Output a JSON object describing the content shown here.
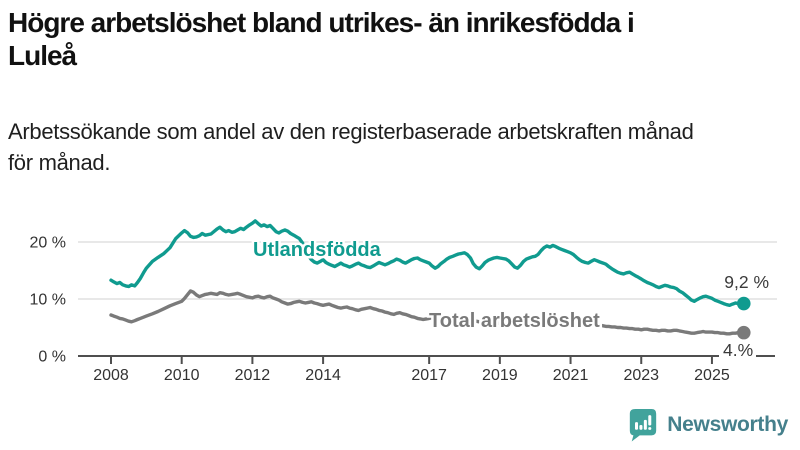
{
  "header": {
    "title_lines": [
      "Högre arbetslöshet bland utrikes- än inrikesfödda i",
      "Luleå"
    ],
    "subtitle_lines": [
      "Arbetssökande som andel av den registerbaserade arbetskraften månad",
      "för månad."
    ]
  },
  "chart_data": {
    "type": "line",
    "unit": "%",
    "grid": "horizontal-light",
    "grid_color": "#dbdbdb",
    "axis_color": "#4f4f4f",
    "x_ticks": [
      "2008",
      "2010",
      "2012",
      "2014",
      "2017",
      "2019",
      "2021",
      "2023",
      "2025"
    ],
    "x_tick_years": [
      2008,
      2010,
      2012,
      2014,
      2017,
      2019,
      2021,
      2023,
      2025
    ],
    "y_ticks": [
      "0 %",
      "10 %",
      "20 %"
    ],
    "y_tick_values": [
      0,
      10,
      20
    ],
    "xlim": [
      2007.6,
      2026.4
    ],
    "ylim": [
      0,
      26
    ],
    "series": [
      {
        "name": "Utlandsfödda",
        "color": "#109b8f",
        "end_label": "9,2 %",
        "x": [
          2008.0,
          2008.08,
          2008.17,
          2008.25,
          2008.33,
          2008.42,
          2008.5,
          2008.58,
          2008.67,
          2008.75,
          2008.83,
          2008.92,
          2009.0,
          2009.17,
          2009.33,
          2009.5,
          2009.67,
          2009.83,
          2010.0,
          2010.08,
          2010.17,
          2010.25,
          2010.33,
          2010.42,
          2010.5,
          2010.58,
          2010.67,
          2010.83,
          2011.0,
          2011.08,
          2011.17,
          2011.25,
          2011.33,
          2011.42,
          2011.5,
          2011.58,
          2011.67,
          2011.75,
          2011.83,
          2011.92,
          2012.0,
          2012.08,
          2012.17,
          2012.25,
          2012.33,
          2012.42,
          2012.5,
          2012.58,
          2012.67,
          2012.75,
          2012.83,
          2012.92,
          2013.0,
          2013.08,
          2013.17,
          2013.25,
          2013.33,
          2013.42,
          2013.5,
          2013.58,
          2013.67,
          2013.75,
          2013.83,
          2013.92,
          2014.0,
          2014.08,
          2014.17,
          2014.25,
          2014.33,
          2014.42,
          2014.5,
          2014.58,
          2014.67,
          2014.75,
          2014.83,
          2014.92,
          2015.0,
          2015.08,
          2015.17,
          2015.25,
          2015.33,
          2015.42,
          2015.5,
          2015.58,
          2015.67,
          2015.75,
          2015.83,
          2015.92,
          2016.0,
          2016.08,
          2016.17,
          2016.25,
          2016.33,
          2016.42,
          2016.5,
          2016.58,
          2016.67,
          2016.75,
          2016.83,
          2016.92,
          2017.0,
          2017.08,
          2017.17,
          2017.25,
          2017.33,
          2017.42,
          2017.5,
          2017.58,
          2017.67,
          2017.75,
          2017.83,
          2017.92,
          2018.0,
          2018.08,
          2018.17,
          2018.25,
          2018.33,
          2018.42,
          2018.5,
          2018.58,
          2018.67,
          2018.75,
          2018.83,
          2018.92,
          2019.0,
          2019.08,
          2019.17,
          2019.25,
          2019.33,
          2019.42,
          2019.5,
          2019.58,
          2019.67,
          2019.75,
          2019.83,
          2019.92,
          2020.0,
          2020.08,
          2020.17,
          2020.25,
          2020.33,
          2020.42,
          2020.5,
          2020.58,
          2020.67,
          2020.75,
          2020.83,
          2020.92,
          2021.0,
          2021.08,
          2021.17,
          2021.25,
          2021.33,
          2021.42,
          2021.5,
          2021.58,
          2021.67,
          2021.75,
          2021.83,
          2021.92,
          2022.0,
          2022.08,
          2022.17,
          2022.25,
          2022.33,
          2022.42,
          2022.5,
          2022.58,
          2022.67,
          2022.75,
          2022.83,
          2022.92,
          2023.0,
          2023.08,
          2023.17,
          2023.25,
          2023.33,
          2023.42,
          2023.5,
          2023.58,
          2023.67,
          2023.75,
          2023.83,
          2023.92,
          2024.0,
          2024.08,
          2024.17,
          2024.25,
          2024.33,
          2024.42,
          2024.5,
          2024.58,
          2024.67,
          2024.75,
          2024.83,
          2024.92,
          2025.0,
          2025.08,
          2025.17,
          2025.25,
          2025.33,
          2025.42,
          2025.5,
          2025.58,
          2025.67,
          2025.75,
          2025.9
        ],
        "values": [
          13.3,
          13.0,
          12.7,
          12.9,
          12.5,
          12.3,
          12.2,
          12.5,
          12.3,
          12.9,
          13.6,
          14.6,
          15.4,
          16.6,
          17.3,
          18.0,
          19.0,
          20.6,
          21.6,
          22.0,
          21.6,
          21.0,
          20.8,
          20.9,
          21.1,
          21.5,
          21.2,
          21.4,
          22.3,
          22.6,
          22.1,
          21.8,
          22.0,
          21.7,
          21.8,
          22.1,
          22.4,
          22.2,
          22.6,
          23.0,
          23.3,
          23.7,
          23.2,
          22.8,
          23.0,
          22.7,
          22.9,
          22.4,
          21.8,
          21.6,
          21.9,
          22.1,
          21.9,
          21.5,
          21.2,
          20.9,
          20.6,
          19.8,
          18.7,
          17.6,
          16.9,
          16.5,
          16.3,
          16.6,
          16.9,
          16.4,
          16.1,
          15.9,
          15.7,
          16.0,
          16.3,
          16.0,
          15.8,
          15.6,
          15.8,
          16.1,
          16.3,
          16.0,
          15.8,
          15.6,
          15.5,
          15.8,
          16.1,
          16.4,
          16.2,
          16.0,
          16.2,
          16.5,
          16.7,
          17.0,
          16.8,
          16.5,
          16.3,
          16.6,
          16.9,
          17.1,
          17.2,
          16.9,
          16.7,
          16.5,
          16.3,
          15.8,
          15.4,
          15.7,
          16.2,
          16.6,
          17.0,
          17.3,
          17.5,
          17.7,
          17.9,
          18.0,
          18.1,
          17.8,
          17.2,
          16.2,
          15.6,
          15.3,
          15.8,
          16.4,
          16.8,
          17.0,
          17.2,
          17.3,
          17.2,
          17.1,
          17.0,
          16.7,
          16.2,
          15.6,
          15.4,
          15.9,
          16.6,
          17.0,
          17.2,
          17.4,
          17.5,
          17.8,
          18.5,
          19.0,
          19.3,
          19.1,
          19.4,
          19.2,
          18.9,
          18.7,
          18.5,
          18.3,
          18.1,
          17.8,
          17.3,
          16.9,
          16.6,
          16.4,
          16.3,
          16.6,
          16.9,
          16.7,
          16.5,
          16.3,
          16.1,
          15.7,
          15.3,
          15.0,
          14.7,
          14.5,
          14.4,
          14.6,
          14.7,
          14.4,
          14.1,
          13.8,
          13.5,
          13.2,
          12.9,
          12.7,
          12.5,
          12.2,
          12.0,
          12.2,
          12.4,
          12.3,
          12.1,
          12.0,
          11.8,
          11.4,
          11.1,
          10.7,
          10.3,
          9.8,
          9.6,
          9.9,
          10.2,
          10.4,
          10.5,
          10.3,
          10.1,
          9.8,
          9.6,
          9.4,
          9.2,
          9.0,
          8.9,
          9.1,
          9.3,
          9.2,
          9.2
        ]
      },
      {
        "name": "Total arbetslöshet",
        "color": "#7a7a7a",
        "end_label": "4.%",
        "x": [
          2008.0,
          2008.08,
          2008.17,
          2008.25,
          2008.33,
          2008.42,
          2008.5,
          2008.58,
          2008.67,
          2008.75,
          2008.83,
          2008.92,
          2009.0,
          2009.17,
          2009.33,
          2009.5,
          2009.67,
          2009.83,
          2010.0,
          2010.08,
          2010.17,
          2010.25,
          2010.33,
          2010.42,
          2010.5,
          2010.58,
          2010.67,
          2010.75,
          2010.83,
          2010.92,
          2011.0,
          2011.08,
          2011.17,
          2011.25,
          2011.33,
          2011.42,
          2011.5,
          2011.58,
          2011.67,
          2011.75,
          2011.83,
          2011.92,
          2012.0,
          2012.08,
          2012.17,
          2012.25,
          2012.33,
          2012.42,
          2012.5,
          2012.58,
          2012.67,
          2012.75,
          2012.83,
          2012.92,
          2013.0,
          2013.08,
          2013.17,
          2013.25,
          2013.33,
          2013.42,
          2013.5,
          2013.58,
          2013.67,
          2013.75,
          2013.83,
          2013.92,
          2014.0,
          2014.08,
          2014.17,
          2014.25,
          2014.33,
          2014.42,
          2014.5,
          2014.58,
          2014.67,
          2014.75,
          2014.83,
          2014.92,
          2015.0,
          2015.08,
          2015.17,
          2015.25,
          2015.33,
          2015.42,
          2015.5,
          2015.58,
          2015.67,
          2015.75,
          2015.83,
          2015.92,
          2016.0,
          2016.08,
          2016.17,
          2016.25,
          2016.33,
          2016.42,
          2016.5,
          2016.58,
          2016.67,
          2016.75,
          2016.83,
          2016.92,
          2017.0,
          2017.08,
          2017.17,
          2017.25,
          2017.33,
          2017.42,
          2017.5,
          2017.58,
          2017.67,
          2017.75,
          2017.83,
          2017.92,
          2018.0,
          2018.08,
          2018.17,
          2018.25,
          2018.33,
          2018.42,
          2018.5,
          2018.58,
          2018.67,
          2018.75,
          2018.83,
          2018.92,
          2019.0,
          2019.08,
          2019.17,
          2019.25,
          2019.33,
          2019.42,
          2019.5,
          2019.58,
          2019.67,
          2019.75,
          2019.83,
          2019.92,
          2020.0,
          2020.08,
          2020.17,
          2020.25,
          2020.33,
          2020.42,
          2020.5,
          2020.58,
          2020.67,
          2020.75,
          2020.83,
          2020.92,
          2021.0,
          2021.08,
          2021.17,
          2021.25,
          2021.33,
          2021.42,
          2021.5,
          2021.58,
          2021.67,
          2021.75,
          2021.83,
          2021.92,
          2022.0,
          2022.08,
          2022.17,
          2022.25,
          2022.33,
          2022.42,
          2022.5,
          2022.58,
          2022.67,
          2022.75,
          2022.83,
          2022.92,
          2023.0,
          2023.08,
          2023.17,
          2023.25,
          2023.33,
          2023.42,
          2023.5,
          2023.58,
          2023.67,
          2023.75,
          2023.83,
          2023.92,
          2024.0,
          2024.08,
          2024.17,
          2024.25,
          2024.33,
          2024.42,
          2024.5,
          2024.58,
          2024.67,
          2024.75,
          2024.83,
          2024.92,
          2025.0,
          2025.08,
          2025.17,
          2025.25,
          2025.33,
          2025.42,
          2025.5,
          2025.58,
          2025.67,
          2025.75,
          2025.9
        ],
        "values": [
          7.2,
          7.0,
          6.8,
          6.6,
          6.5,
          6.3,
          6.1,
          6.0,
          6.2,
          6.4,
          6.6,
          6.8,
          7.0,
          7.4,
          7.8,
          8.3,
          8.8,
          9.2,
          9.6,
          10.1,
          10.8,
          11.4,
          11.2,
          10.7,
          10.4,
          10.6,
          10.8,
          10.9,
          11.0,
          10.9,
          10.8,
          11.1,
          11.0,
          10.8,
          10.7,
          10.8,
          10.9,
          11.0,
          10.8,
          10.6,
          10.4,
          10.3,
          10.2,
          10.4,
          10.5,
          10.3,
          10.2,
          10.4,
          10.5,
          10.2,
          10.0,
          9.8,
          9.5,
          9.3,
          9.1,
          9.2,
          9.4,
          9.5,
          9.6,
          9.4,
          9.3,
          9.4,
          9.5,
          9.3,
          9.2,
          9.0,
          8.9,
          9.0,
          9.1,
          8.9,
          8.7,
          8.5,
          8.4,
          8.5,
          8.6,
          8.4,
          8.3,
          8.1,
          8.0,
          8.2,
          8.3,
          8.4,
          8.5,
          8.3,
          8.2,
          8.0,
          7.9,
          7.7,
          7.6,
          7.4,
          7.3,
          7.5,
          7.6,
          7.4,
          7.3,
          7.1,
          6.9,
          6.8,
          6.6,
          6.5,
          6.4,
          6.5,
          6.6,
          6.7,
          6.8,
          6.9,
          6.7,
          6.8,
          6.9,
          6.7,
          6.6,
          6.5,
          6.4,
          6.3,
          6.2,
          6.3,
          6.4,
          6.2,
          6.1,
          6.0,
          5.9,
          6.0,
          6.1,
          6.0,
          5.9,
          5.8,
          5.7,
          5.8,
          5.9,
          5.8,
          5.7,
          5.6,
          5.6,
          5.7,
          5.8,
          5.7,
          5.7,
          5.7,
          5.8,
          6.0,
          6.3,
          6.5,
          6.7,
          6.8,
          6.9,
          6.8,
          6.7,
          6.6,
          6.5,
          6.4,
          6.3,
          6.2,
          6.1,
          6.0,
          5.9,
          5.8,
          5.7,
          5.6,
          5.6,
          5.5,
          5.4,
          5.3,
          5.2,
          5.2,
          5.1,
          5.1,
          5.0,
          5.0,
          4.9,
          4.9,
          4.8,
          4.8,
          4.7,
          4.7,
          4.6,
          4.7,
          4.7,
          4.6,
          4.5,
          4.5,
          4.4,
          4.5,
          4.5,
          4.4,
          4.4,
          4.5,
          4.5,
          4.4,
          4.3,
          4.2,
          4.1,
          4.0,
          4.0,
          4.1,
          4.2,
          4.3,
          4.2,
          4.2,
          4.2,
          4.1,
          4.1,
          4.0,
          4.0,
          3.9,
          3.9,
          4.0,
          4.0,
          4.1,
          4.1
        ]
      }
    ]
  },
  "footer": {
    "brand": "Newsworthy",
    "logo_icon": "newsworthy-bar-chart-bubble-icon",
    "logo_color": "#41a39c",
    "brand_color": "#45808c"
  }
}
